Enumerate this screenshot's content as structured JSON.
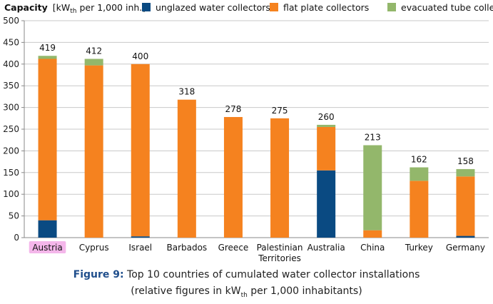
{
  "chart_data": {
    "type": "bar",
    "stacked": true,
    "ylabel_bold": "Capacity",
    "ylabel_unit_pre": "[kW",
    "ylabel_unit_sub": "th",
    "ylabel_unit_post": " per 1,000 inh.]",
    "ylim": [
      0,
      500
    ],
    "yticks": [
      "0",
      "50",
      "100",
      "150",
      "200",
      "250",
      "300",
      "350",
      "400",
      "450",
      "500"
    ],
    "grid": true,
    "legend_position": "top",
    "categories": [
      "Austria",
      "Cyprus",
      "Israel",
      "Barbados",
      "Greece",
      "Palestinian Territories",
      "Australia",
      "China",
      "Turkey",
      "Germany"
    ],
    "category_lines": [
      [
        "Austria"
      ],
      [
        "Cyprus"
      ],
      [
        "Israel"
      ],
      [
        "Barbados"
      ],
      [
        "Greece"
      ],
      [
        "Palestinian",
        "Territories"
      ],
      [
        "Australia"
      ],
      [
        "China"
      ],
      [
        "Turkey"
      ],
      [
        "Germany"
      ]
    ],
    "highlighted_category": "Austria",
    "totals": [
      "419",
      "412",
      "400",
      "318",
      "278",
      "275",
      "260",
      "213",
      "162",
      "158"
    ],
    "series": [
      {
        "name": "unglazed water collectors",
        "color": "#0a4a82",
        "values": [
          40,
          0,
          3,
          0,
          0,
          0,
          155,
          0,
          0,
          4
        ]
      },
      {
        "name": "flat plate collectors",
        "color": "#f5821f",
        "values": [
          372,
          397,
          397,
          318,
          278,
          275,
          100,
          17,
          131,
          137
        ]
      },
      {
        "name": "evacuated tube collectors",
        "color": "#93b76b",
        "values": [
          7,
          15,
          0,
          0,
          0,
          0,
          5,
          196,
          31,
          17
        ]
      }
    ]
  },
  "caption": {
    "figure_label": "Figure 9:",
    "line1": " Top 10 countries of cumulated water collector installations",
    "line2_pre": "(relative figures in kW",
    "line2_sub": "th",
    "line2_post": " per 1,000 inhabitants)"
  },
  "colors": {
    "highlight": "#f4b6ea",
    "grid": "#c8c8c8",
    "axis": "#888888",
    "caption_accent": "#1f4e8c"
  }
}
